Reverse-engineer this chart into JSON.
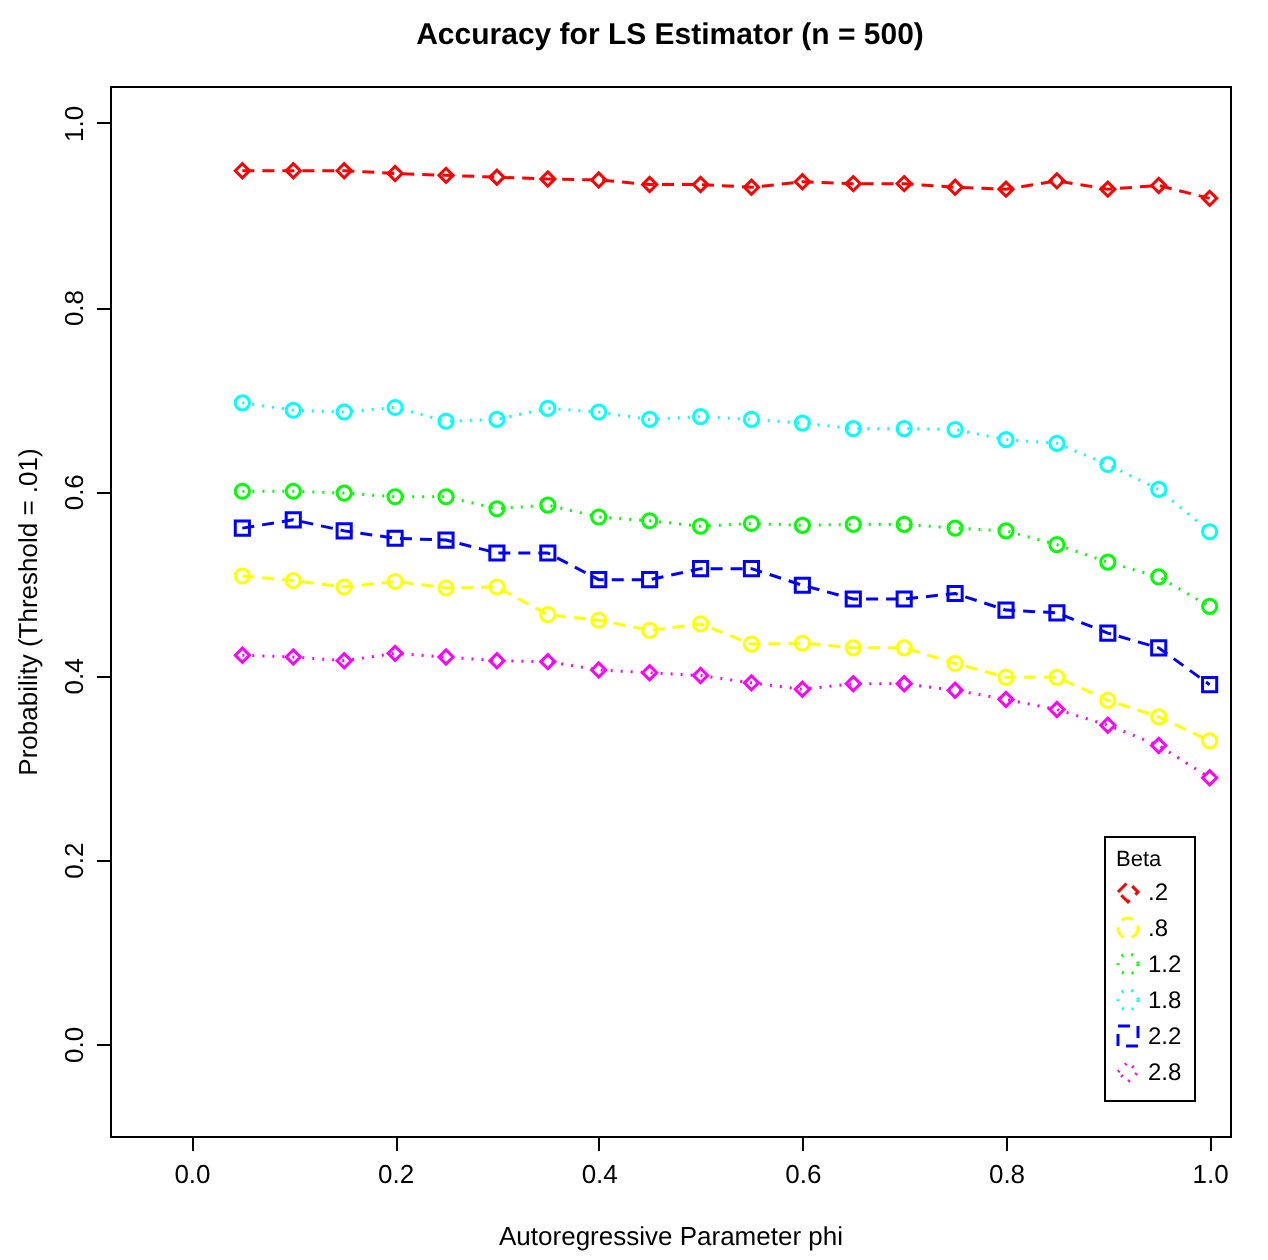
{
  "chart_data": {
    "type": "line",
    "title": "Accuracy for LS Estimator (n = 500)",
    "xlabel": "Autoregressive Parameter phi",
    "ylabel": "Probability (Threshold = .01)",
    "legend_title": "Beta",
    "x": [
      0.05,
      0.1,
      0.15,
      0.2,
      0.25,
      0.3,
      0.35,
      0.4,
      0.45,
      0.5,
      0.55,
      0.6,
      0.65,
      0.7,
      0.75,
      0.8,
      0.85,
      0.9,
      0.95,
      1.0
    ],
    "series": [
      {
        "name": ".2",
        "color": "#ff0000",
        "marker": "diamond",
        "line_style": "dashed",
        "values": [
          0.948,
          0.948,
          0.948,
          0.945,
          0.943,
          0.941,
          0.939,
          0.938,
          0.933,
          0.933,
          0.93,
          0.936,
          0.934,
          0.934,
          0.93,
          0.928,
          0.937,
          0.928,
          0.932,
          0.918
        ]
      },
      {
        "name": ".8",
        "color": "#ffff00",
        "marker": "circle",
        "line_style": "dashed",
        "values": [
          0.508,
          0.503,
          0.496,
          0.502,
          0.495,
          0.496,
          0.466,
          0.46,
          0.449,
          0.456,
          0.434,
          0.435,
          0.43,
          0.43,
          0.413,
          0.398,
          0.398,
          0.373,
          0.355,
          0.329
        ]
      },
      {
        "name": "1.2",
        "color": "#00ff00",
        "marker": "circle",
        "line_style": "dotted",
        "values": [
          0.6,
          0.6,
          0.598,
          0.594,
          0.594,
          0.581,
          0.585,
          0.572,
          0.568,
          0.562,
          0.565,
          0.563,
          0.564,
          0.564,
          0.56,
          0.557,
          0.542,
          0.523,
          0.507,
          0.475
        ]
      },
      {
        "name": "1.8",
        "color": "#00ffff",
        "marker": "circle",
        "line_style": "dotted",
        "values": [
          0.696,
          0.688,
          0.686,
          0.691,
          0.676,
          0.678,
          0.69,
          0.686,
          0.678,
          0.681,
          0.678,
          0.674,
          0.668,
          0.668,
          0.667,
          0.656,
          0.652,
          0.629,
          0.602,
          0.556
        ]
      },
      {
        "name": "2.2",
        "color": "#0000ff",
        "marker": "square",
        "line_style": "dashed",
        "values": [
          0.56,
          0.569,
          0.557,
          0.549,
          0.547,
          0.533,
          0.533,
          0.504,
          0.504,
          0.516,
          0.516,
          0.498,
          0.483,
          0.483,
          0.489,
          0.471,
          0.468,
          0.446,
          0.43,
          0.39
        ]
      },
      {
        "name": "2.8",
        "color": "#ff00ff",
        "marker": "diamond",
        "line_style": "dotted",
        "values": [
          0.422,
          0.42,
          0.416,
          0.424,
          0.42,
          0.416,
          0.415,
          0.406,
          0.403,
          0.4,
          0.392,
          0.385,
          0.391,
          0.391,
          0.384,
          0.374,
          0.363,
          0.346,
          0.324,
          0.289
        ]
      }
    ],
    "xlim": [
      -0.08,
      1.02
    ],
    "xticks": [
      {
        "value": 0,
        "label": "0.0"
      },
      0.2,
      0.4,
      0.6,
      0.8,
      {
        "value": 1,
        "label": "1.0"
      }
    ],
    "ylim": [
      -0.1,
      1.04
    ],
    "yticks": [
      {
        "value": 0,
        "label": "0.0"
      },
      0.2,
      0.4,
      0.6,
      0.8,
      {
        "value": 1,
        "label": "1.0"
      }
    ],
    "grid": false,
    "legend": "bottom right"
  }
}
